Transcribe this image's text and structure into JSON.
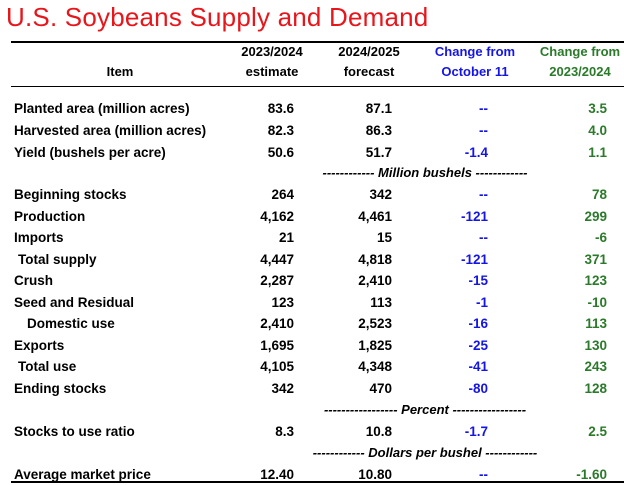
{
  "title": "U.S. Soybeans Supply and Demand",
  "header": {
    "item": "Item",
    "col1_line1": "2023/2024",
    "col1_line2": "estimate",
    "col2_line1": "2024/2025",
    "col2_line2": "forecast",
    "col3_line1": "Change from",
    "col3_line2": "October 11",
    "col4_line1": "Change from",
    "col4_line2": "2023/2024"
  },
  "colors": {
    "title": "#e8161b",
    "change_october": "#1414e6",
    "change_year": "#2a7a2a"
  },
  "units": {
    "million_bushels": "------------ Million bushels ------------",
    "percent": "----------------- Percent -----------------",
    "dollars": "------------ Dollars per bushel ------------"
  },
  "rows": [
    {
      "label": "Planted area (million acres)",
      "est": "83.6",
      "fc": "87.1",
      "chg_oct": "--",
      "chg_yr": "3.5"
    },
    {
      "label": "Harvested area (million acres)",
      "est": "82.3",
      "fc": "86.3",
      "chg_oct": "--",
      "chg_yr": "4.0"
    },
    {
      "label": "Yield (bushels per acre)",
      "est": "50.6",
      "fc": "51.7",
      "chg_oct": "-1.4",
      "chg_yr": "1.1"
    },
    {
      "label": "Beginning stocks",
      "est": "264",
      "fc": "342",
      "chg_oct": "--",
      "chg_yr": "78"
    },
    {
      "label": "Production",
      "est": "4,162",
      "fc": "4,461",
      "chg_oct": "-121",
      "chg_yr": "299"
    },
    {
      "label": "Imports",
      "est": "21",
      "fc": "15",
      "chg_oct": "--",
      "chg_yr": "-6"
    },
    {
      "label": "Total supply",
      "est": "4,447",
      "fc": "4,818",
      "chg_oct": "-121",
      "chg_yr": "371"
    },
    {
      "label": "Crush",
      "est": "2,287",
      "fc": "2,410",
      "chg_oct": "-15",
      "chg_yr": "123"
    },
    {
      "label": "Seed and Residual",
      "est": "123",
      "fc": "113",
      "chg_oct": "-1",
      "chg_yr": "-10"
    },
    {
      "label": "Domestic use",
      "est": "2,410",
      "fc": "2,523",
      "chg_oct": "-16",
      "chg_yr": "113"
    },
    {
      "label": "Exports",
      "est": "1,695",
      "fc": "1,825",
      "chg_oct": "-25",
      "chg_yr": "130"
    },
    {
      "label": "Total use",
      "est": "4,105",
      "fc": "4,348",
      "chg_oct": "-41",
      "chg_yr": "243"
    },
    {
      "label": "Ending stocks",
      "est": "342",
      "fc": "470",
      "chg_oct": "-80",
      "chg_yr": "128"
    },
    {
      "label": "Stocks to use ratio",
      "est": "8.3",
      "fc": "10.8",
      "chg_oct": "-1.7",
      "chg_yr": "2.5"
    },
    {
      "label": "Average market price",
      "est": "12.40",
      "fc": "10.80",
      "chg_oct": "--",
      "chg_yr": "-1.60"
    }
  ]
}
